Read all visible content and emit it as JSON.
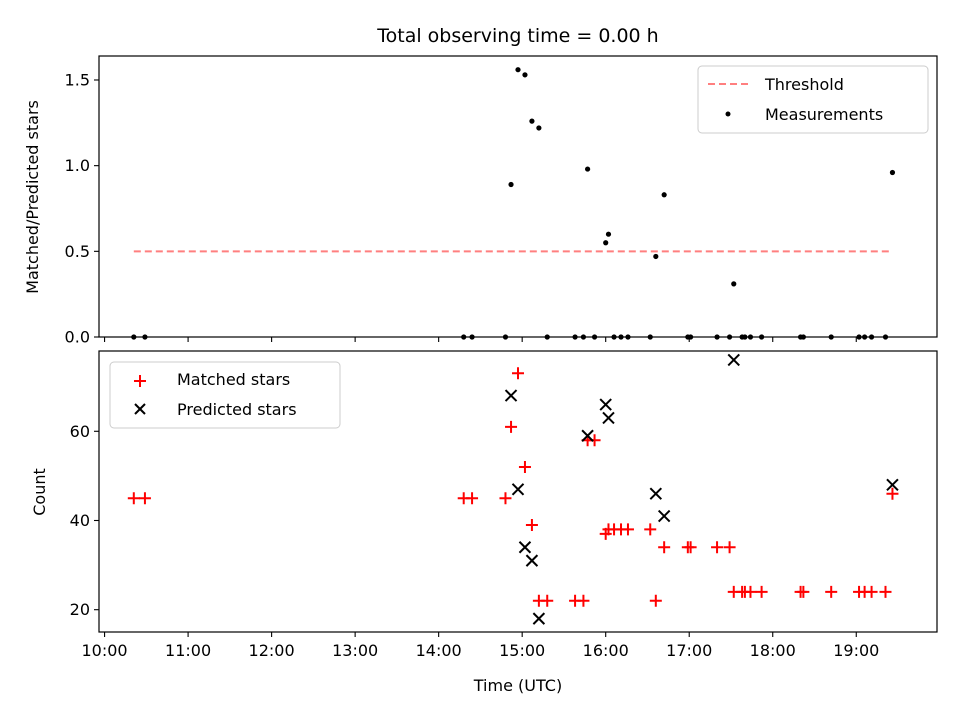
{
  "figure": {
    "title": "Total observing time = 0.00 h"
  },
  "chart_data": [
    {
      "type": "scatter",
      "panel": "top",
      "ylabel": "Matched/Predicted stars",
      "ylim": [
        0,
        1.64
      ],
      "yticks": [
        0.0,
        0.5,
        1.0,
        1.5
      ],
      "ytick_labels": [
        "0.0",
        "0.5",
        "1.0",
        "1.5"
      ],
      "xlim": [
        "09:56",
        "19:58"
      ],
      "legend_position": "upper right",
      "threshold": {
        "name": "Threshold",
        "y": 0.5,
        "x": [
          "10:21",
          "19:26"
        ],
        "color": "#ff7f7f",
        "style": "dashed"
      },
      "series": [
        {
          "name": "Measurements",
          "color": "#000000",
          "marker": "dot",
          "points": [
            {
              "x": "10:21",
              "y": 0.0
            },
            {
              "x": "10:29",
              "y": 0.0
            },
            {
              "x": "14:18",
              "y": 0.0
            },
            {
              "x": "14:24",
              "y": 0.0
            },
            {
              "x": "14:48",
              "y": 0.0
            },
            {
              "x": "14:52",
              "y": 0.89
            },
            {
              "x": "14:57",
              "y": 1.56
            },
            {
              "x": "15:02",
              "y": 1.53
            },
            {
              "x": "15:07",
              "y": 1.26
            },
            {
              "x": "15:12",
              "y": 1.22
            },
            {
              "x": "15:18",
              "y": 0.0
            },
            {
              "x": "15:38",
              "y": 0.0
            },
            {
              "x": "15:44",
              "y": 0.0
            },
            {
              "x": "15:47",
              "y": 0.98
            },
            {
              "x": "15:52",
              "y": 0.0
            },
            {
              "x": "16:00",
              "y": 0.55
            },
            {
              "x": "16:02",
              "y": 0.6
            },
            {
              "x": "16:06",
              "y": 0.0
            },
            {
              "x": "16:11",
              "y": 0.0
            },
            {
              "x": "16:16",
              "y": 0.0
            },
            {
              "x": "16:32",
              "y": 0.0
            },
            {
              "x": "16:36",
              "y": 0.47
            },
            {
              "x": "16:42",
              "y": 0.83
            },
            {
              "x": "16:59",
              "y": 0.0
            },
            {
              "x": "17:01",
              "y": 0.0
            },
            {
              "x": "17:20",
              "y": 0.0
            },
            {
              "x": "17:29",
              "y": 0.0
            },
            {
              "x": "17:32",
              "y": 0.31
            },
            {
              "x": "17:38",
              "y": 0.0
            },
            {
              "x": "17:40",
              "y": 0.0
            },
            {
              "x": "17:44",
              "y": 0.0
            },
            {
              "x": "17:52",
              "y": 0.0
            },
            {
              "x": "18:20",
              "y": 0.0
            },
            {
              "x": "18:22",
              "y": 0.0
            },
            {
              "x": "18:42",
              "y": 0.0
            },
            {
              "x": "19:02",
              "y": 0.0
            },
            {
              "x": "19:06",
              "y": 0.0
            },
            {
              "x": "19:11",
              "y": 0.0
            },
            {
              "x": "19:21",
              "y": 0.0
            },
            {
              "x": "19:26",
              "y": 0.96
            }
          ]
        }
      ]
    },
    {
      "type": "scatter",
      "panel": "bottom",
      "xlabel": "Time (UTC)",
      "ylabel": "Count",
      "ylim": [
        15,
        78
      ],
      "yticks": [
        20,
        40,
        60
      ],
      "ytick_labels": [
        "20",
        "40",
        "60"
      ],
      "xlim": [
        "09:56",
        "19:58"
      ],
      "xticks": [
        "10:00",
        "11:00",
        "12:00",
        "13:00",
        "14:00",
        "15:00",
        "16:00",
        "17:00",
        "18:00",
        "19:00"
      ],
      "legend_position": "upper left",
      "series": [
        {
          "name": "Matched stars",
          "color": "#ff0000",
          "marker": "plus",
          "points": [
            {
              "x": "10:21",
              "y": 45
            },
            {
              "x": "10:29",
              "y": 45
            },
            {
              "x": "14:18",
              "y": 45
            },
            {
              "x": "14:24",
              "y": 45
            },
            {
              "x": "14:48",
              "y": 45
            },
            {
              "x": "14:52",
              "y": 61
            },
            {
              "x": "14:57",
              "y": 73
            },
            {
              "x": "15:02",
              "y": 52
            },
            {
              "x": "15:07",
              "y": 39
            },
            {
              "x": "15:12",
              "y": 22
            },
            {
              "x": "15:18",
              "y": 22
            },
            {
              "x": "15:38",
              "y": 22
            },
            {
              "x": "15:44",
              "y": 22
            },
            {
              "x": "15:47",
              "y": 58
            },
            {
              "x": "15:52",
              "y": 58
            },
            {
              "x": "16:00",
              "y": 37
            },
            {
              "x": "16:02",
              "y": 38
            },
            {
              "x": "16:06",
              "y": 38
            },
            {
              "x": "16:11",
              "y": 38
            },
            {
              "x": "16:16",
              "y": 38
            },
            {
              "x": "16:32",
              "y": 38
            },
            {
              "x": "16:36",
              "y": 22
            },
            {
              "x": "16:42",
              "y": 34
            },
            {
              "x": "16:59",
              "y": 34
            },
            {
              "x": "17:01",
              "y": 34
            },
            {
              "x": "17:20",
              "y": 34
            },
            {
              "x": "17:29",
              "y": 34
            },
            {
              "x": "17:32",
              "y": 24
            },
            {
              "x": "17:38",
              "y": 24
            },
            {
              "x": "17:40",
              "y": 24
            },
            {
              "x": "17:44",
              "y": 24
            },
            {
              "x": "17:52",
              "y": 24
            },
            {
              "x": "18:20",
              "y": 24
            },
            {
              "x": "18:22",
              "y": 24
            },
            {
              "x": "18:42",
              "y": 24
            },
            {
              "x": "19:02",
              "y": 24
            },
            {
              "x": "19:06",
              "y": 24
            },
            {
              "x": "19:11",
              "y": 24
            },
            {
              "x": "19:21",
              "y": 24
            },
            {
              "x": "19:26",
              "y": 46
            }
          ]
        },
        {
          "name": "Predicted stars",
          "color": "#000000",
          "marker": "x",
          "points": [
            {
              "x": "14:52",
              "y": 68
            },
            {
              "x": "14:57",
              "y": 47
            },
            {
              "x": "15:02",
              "y": 34
            },
            {
              "x": "15:07",
              "y": 31
            },
            {
              "x": "15:12",
              "y": 18
            },
            {
              "x": "15:47",
              "y": 59
            },
            {
              "x": "16:00",
              "y": 66
            },
            {
              "x": "16:02",
              "y": 63
            },
            {
              "x": "16:36",
              "y": 46
            },
            {
              "x": "16:42",
              "y": 41
            },
            {
              "x": "17:32",
              "y": 76
            },
            {
              "x": "19:26",
              "y": 48
            }
          ]
        }
      ]
    }
  ]
}
